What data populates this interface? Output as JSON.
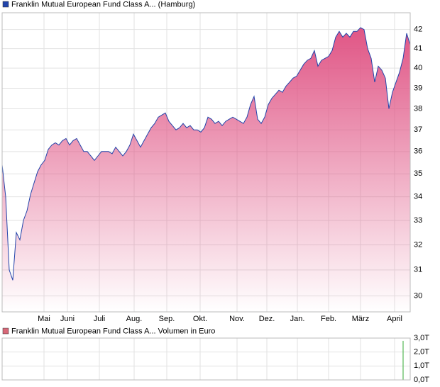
{
  "chart_data": [
    {
      "type": "area",
      "log_scale": true,
      "grid": true,
      "legend": "top-left",
      "xlim": [
        0,
        115
      ],
      "ylim": [
        29.4,
        42.9
      ],
      "xticks": [
        {
          "value": 11.8,
          "label": "Mai"
        },
        {
          "value": 18.4,
          "label": "Juni"
        },
        {
          "value": 27.4,
          "label": "Juli"
        },
        {
          "value": 37.2,
          "label": "Aug."
        },
        {
          "value": 46.4,
          "label": "Sep."
        },
        {
          "value": 55.8,
          "label": "Okt."
        },
        {
          "value": 66.2,
          "label": "Nov."
        },
        {
          "value": 74.6,
          "label": "Dez."
        },
        {
          "value": 83.2,
          "label": "Jan."
        },
        {
          "value": 92,
          "label": "Feb."
        },
        {
          "value": 101,
          "label": "März"
        },
        {
          "value": 110.6,
          "label": "April"
        }
      ],
      "yticks": [
        30,
        31,
        32,
        33,
        34,
        35,
        36,
        37,
        38,
        39,
        40,
        41,
        42
      ],
      "series": [
        {
          "name": "Franklin Mutual European Fund Class A... (Hamburg)",
          "color": "#2244aa",
          "fill": "#e05585",
          "values": [
            35.4,
            34.0,
            31.0,
            30.6,
            32.5,
            32.2,
            33.0,
            33.4,
            34.1,
            34.6,
            35.1,
            35.4,
            35.6,
            36.1,
            36.3,
            36.4,
            36.3,
            36.5,
            36.6,
            36.3,
            36.5,
            36.6,
            36.3,
            36.0,
            36.0,
            35.8,
            35.6,
            35.8,
            36.0,
            36.0,
            36.0,
            35.9,
            36.2,
            36.0,
            35.8,
            36.0,
            36.3,
            36.8,
            36.5,
            36.2,
            36.5,
            36.8,
            37.1,
            37.3,
            37.6,
            37.7,
            37.8,
            37.4,
            37.2,
            37.0,
            37.1,
            37.3,
            37.1,
            37.2,
            37.0,
            37.0,
            36.9,
            37.1,
            37.6,
            37.5,
            37.3,
            37.4,
            37.2,
            37.4,
            37.5,
            37.6,
            37.5,
            37.4,
            37.3,
            37.6,
            38.2,
            38.6,
            37.5,
            37.3,
            37.6,
            38.2,
            38.5,
            38.7,
            38.9,
            38.8,
            39.1,
            39.3,
            39.5,
            39.6,
            39.9,
            40.2,
            40.4,
            40.5,
            40.9,
            40.1,
            40.4,
            40.5,
            40.6,
            40.9,
            41.6,
            41.9,
            41.6,
            41.8,
            41.6,
            41.9,
            41.9,
            42.1,
            42.0,
            41.0,
            40.5,
            39.3,
            40.1,
            39.9,
            39.5,
            38.0,
            38.8,
            39.3,
            39.8,
            40.5,
            41.8,
            41.2
          ]
        }
      ]
    },
    {
      "type": "bar",
      "grid": true,
      "legend": "top-left",
      "xlim": [
        0,
        115
      ],
      "ylim": [
        0,
        3
      ],
      "yticks": [
        {
          "value": 0,
          "label": "0,0T"
        },
        {
          "value": 1,
          "label": "1,0T"
        },
        {
          "value": 2,
          "label": "2,0T"
        },
        {
          "value": 3,
          "label": "3,0T"
        }
      ],
      "series": [
        {
          "name": "Franklin Mutual European Fund Class A... Volumen in Euro",
          "color": "#33aa33",
          "legend_color": "#d86878",
          "values": [
            0,
            0,
            0,
            0,
            0,
            0,
            0,
            0,
            0,
            0,
            0,
            0,
            0,
            0,
            0,
            0,
            0,
            0,
            0,
            0,
            0,
            0,
            0,
            0,
            0,
            0,
            0,
            0,
            0,
            0,
            0,
            0,
            0,
            0,
            0,
            0,
            0,
            0,
            0,
            0,
            0,
            0,
            0,
            0,
            0,
            0,
            0,
            0,
            0,
            0,
            0,
            0,
            0,
            0,
            0,
            0,
            0,
            0,
            0,
            0,
            0,
            0,
            0,
            0,
            0,
            0,
            0,
            0,
            0,
            0,
            0,
            0,
            0,
            0,
            0,
            0,
            0,
            0,
            0,
            0,
            0,
            0,
            0,
            0,
            0,
            0,
            0,
            0,
            0,
            0,
            0,
            0,
            0,
            0,
            0,
            0,
            0,
            0,
            0,
            0,
            0,
            0,
            0,
            0,
            0,
            0,
            0,
            0,
            0,
            0,
            0,
            0,
            0,
            2.8,
            0,
            0
          ]
        }
      ]
    }
  ]
}
